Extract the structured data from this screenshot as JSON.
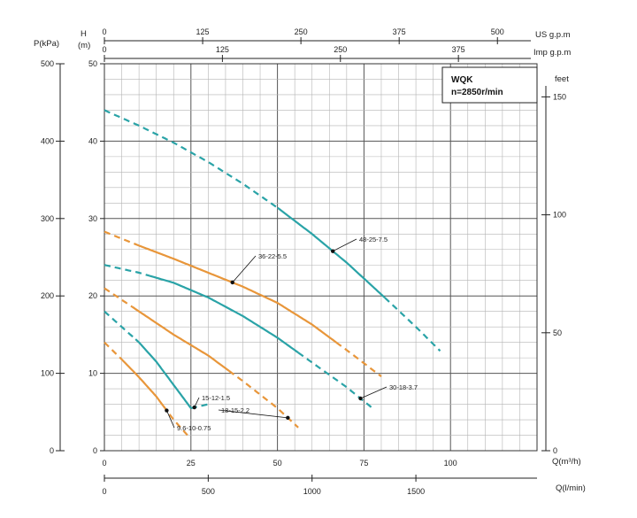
{
  "chart_data": {
    "type": "line",
    "title": "WQK",
    "subtitle": "n=2850r/min",
    "x_axis": {
      "label": "Q(m³/h)",
      "range": [
        0,
        100
      ],
      "ticks": [
        0,
        25,
        50,
        75,
        100
      ]
    },
    "x_axis_lpm": {
      "label": "Q(l/min)",
      "ticks": [
        0,
        500,
        1000,
        1500
      ]
    },
    "x_axis_us": {
      "label": "US g.p.m",
      "ticks": [
        0,
        125,
        250,
        375,
        500
      ]
    },
    "x_axis_imp": {
      "label": "Imp g.p.m",
      "ticks": [
        0,
        125,
        250,
        375
      ]
    },
    "y_axis_h": {
      "label_top": "H",
      "label_unit": "(m)",
      "range": [
        0,
        50
      ],
      "ticks": [
        0,
        10,
        20,
        30,
        40,
        50
      ]
    },
    "y_axis_p": {
      "label": "P(kPa)",
      "ticks": [
        0,
        100,
        200,
        300,
        400,
        500
      ]
    },
    "y_axis_feet": {
      "label": "feet",
      "ticks": [
        0,
        50,
        100,
        150
      ]
    },
    "grid": true,
    "series": [
      {
        "name": "9.6-10-0.75",
        "color": "#e8963a",
        "points": [
          [
            0,
            14
          ],
          [
            5,
            11.8
          ],
          [
            10,
            9.5
          ],
          [
            15,
            7
          ],
          [
            20,
            4
          ],
          [
            24,
            2
          ]
        ],
        "solid_range": [
          5,
          17
        ]
      },
      {
        "name": "15-12-1.5",
        "color": "#2aa3a7",
        "points": [
          [
            0,
            18
          ],
          [
            5,
            16
          ],
          [
            10,
            14
          ],
          [
            15,
            11.5
          ],
          [
            20,
            8.5
          ],
          [
            25,
            5.5
          ],
          [
            30,
            6
          ]
        ],
        "solid_range": [
          9,
          25
        ]
      },
      {
        "name": "18-15-2.2",
        "color": "#e8963a",
        "points": [
          [
            0,
            21
          ],
          [
            10,
            18
          ],
          [
            20,
            15
          ],
          [
            30,
            12.3
          ],
          [
            40,
            9
          ],
          [
            50,
            5.5
          ],
          [
            56,
            3
          ]
        ],
        "solid_range": [
          8,
          36
        ]
      },
      {
        "name": "30-18-3.7",
        "color": "#2aa3a7",
        "points": [
          [
            0,
            24
          ],
          [
            10,
            23
          ],
          [
            20,
            21.7
          ],
          [
            30,
            19.8
          ],
          [
            40,
            17.4
          ],
          [
            50,
            14.6
          ],
          [
            60,
            11.4
          ],
          [
            70,
            8.2
          ],
          [
            78,
            5.3
          ]
        ],
        "solid_range": [
          13,
          56
        ]
      },
      {
        "name": "36-22-5.5",
        "color": "#e8963a",
        "points": [
          [
            0,
            28.3
          ],
          [
            10,
            26.5
          ],
          [
            20,
            24.8
          ],
          [
            30,
            23
          ],
          [
            40,
            21.2
          ],
          [
            50,
            19.1
          ],
          [
            60,
            16.3
          ],
          [
            70,
            13
          ],
          [
            80,
            9.6
          ]
        ],
        "solid_range": [
          10,
          67
        ]
      },
      {
        "name": "48-25-7.5",
        "color": "#2aa3a7",
        "points": [
          [
            0,
            44
          ],
          [
            10,
            42
          ],
          [
            20,
            39.8
          ],
          [
            30,
            37.3
          ],
          [
            40,
            34.5
          ],
          [
            50,
            31.4
          ],
          [
            60,
            28
          ],
          [
            70,
            24.3
          ],
          [
            80,
            20.2
          ],
          [
            90,
            16
          ],
          [
            97,
            12.9
          ]
        ],
        "solid_range": [
          50,
          81
        ]
      }
    ]
  }
}
